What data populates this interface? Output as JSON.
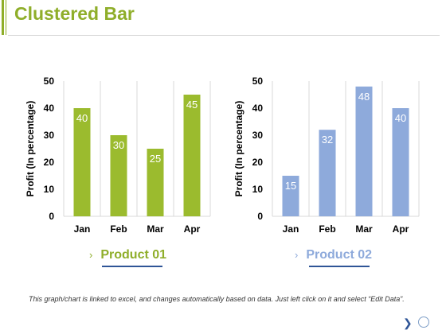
{
  "page": {
    "title": "Clustered Bar"
  },
  "footnote": "This graph/chart is linked to excel, and changes automatically based on data. Just left click on it and select “Edit Data”.",
  "nav": {
    "next_icon": "chevron-right-icon",
    "circle_icon": "circle-icon"
  },
  "colors": {
    "title": "#8fae2a",
    "product01": "#9bbb2e",
    "product02": "#8eaadb"
  },
  "chart_data": [
    {
      "type": "bar",
      "categories": [
        "Jan",
        "Feb",
        "Mar",
        "Apr"
      ],
      "values": [
        40,
        30,
        25,
        45
      ],
      "legend": "Product 01",
      "ylabel": "Profit  (In percentage)",
      "ylim": [
        0,
        50
      ],
      "yticks": [
        0,
        10,
        20,
        30,
        40,
        50
      ],
      "grid": "vertical"
    },
    {
      "type": "bar",
      "categories": [
        "Jan",
        "Feb",
        "Mar",
        "Apr"
      ],
      "values": [
        15,
        32,
        48,
        40
      ],
      "legend": "Product 02",
      "ylabel": "Profit  (In percentage)",
      "ylim": [
        0,
        50
      ],
      "yticks": [
        0,
        10,
        20,
        30,
        40,
        50
      ],
      "grid": "vertical"
    }
  ]
}
